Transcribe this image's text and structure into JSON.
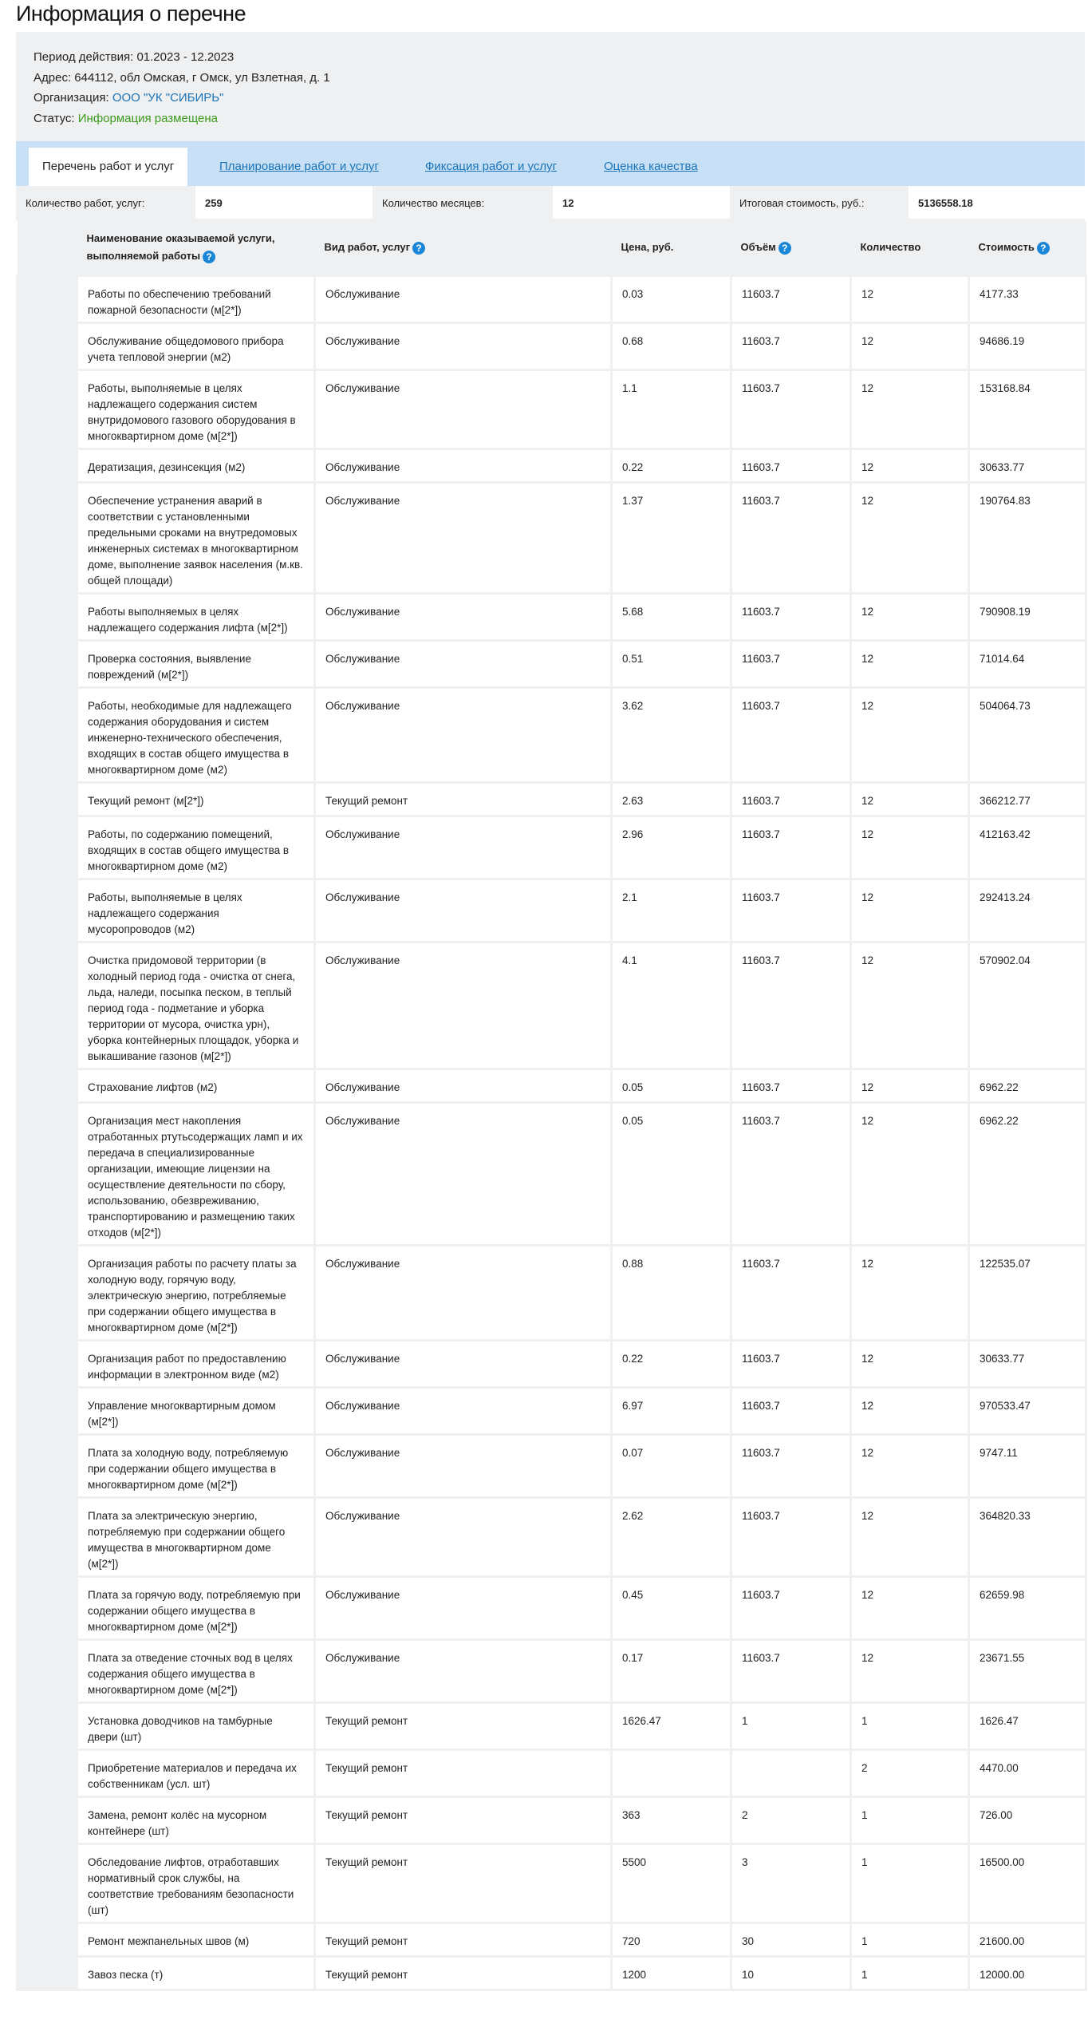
{
  "page_title": "Информация о перечне",
  "info": {
    "period_label": "Период действия:",
    "period_value": "01.2023 - 12.2023",
    "address_label": "Адрес:",
    "address_value": "644112, обл Омская, г Омск, ул Взлетная, д. 1",
    "org_label": "Организация:",
    "org_value": "ООО \"УК \"СИБИРЬ\"",
    "status_label": "Статус:",
    "status_value": "Информация размещена"
  },
  "colors": {
    "link": "#1a73b8",
    "status_ok": "#3a9a1c",
    "tab_bar": "#c7e0f5",
    "help_icon": "#1a86d8"
  },
  "tabs": [
    {
      "label": "Перечень работ и услуг",
      "active": true
    },
    {
      "label": "Планирование работ и услуг",
      "active": false
    },
    {
      "label": "Фиксация работ и услуг",
      "active": false
    },
    {
      "label": "Оценка качества",
      "active": false
    }
  ],
  "summary": {
    "works_label": "Количество работ, услуг:",
    "works_value": "259",
    "months_label": "Количество месяцев:",
    "months_value": "12",
    "total_label": "Итоговая стоимость, руб.:",
    "total_value": "5136558.18"
  },
  "table": {
    "headers": {
      "name": "Наименование оказываемой услуги, выполняемой работы",
      "type": "Вид работ, услуг",
      "price": "Цена, руб.",
      "volume": "Объём",
      "quantity": "Количество",
      "cost": "Стоимость"
    },
    "help_icon": "question-circle-icon",
    "rows": [
      [
        "Работы по обеспечению требований пожарной безопасности (м[2*])",
        "Обслуживание",
        "0.03",
        "11603.7",
        "12",
        "4177.33"
      ],
      [
        "Обслуживание общедомового прибора учета тепловой энергии (м2)",
        "Обслуживание",
        "0.68",
        "11603.7",
        "12",
        "94686.19"
      ],
      [
        "Работы, выполняемые в целях надлежащего содержания систем внутридомового газового оборудования в многоквартирном доме (м[2*])",
        "Обслуживание",
        "1.1",
        "11603.7",
        "12",
        "153168.84"
      ],
      [
        "Дератизация, дезинсекция (м2)",
        "Обслуживание",
        "0.22",
        "11603.7",
        "12",
        "30633.77"
      ],
      [
        "Обеспечение устранения аварий в соответствии с установленными предельными сроками на внутредомовых инженерных системах в многоквартирном доме, выполнение заявок населения (м.кв. общей площади)",
        "Обслуживание",
        "1.37",
        "11603.7",
        "12",
        "190764.83"
      ],
      [
        "Работы выполняемых в целях надлежащего содержания лифта (м[2*])",
        "Обслуживание",
        "5.68",
        "11603.7",
        "12",
        "790908.19"
      ],
      [
        "Проверка состояния, выявление повреждений (м[2*])",
        "Обслуживание",
        "0.51",
        "11603.7",
        "12",
        "71014.64"
      ],
      [
        "Работы, необходимые для надлежащего содержания оборудования и систем инженерно-технического обеспечения, входящих в состав общего имущества в многоквартирном доме (м2)",
        "Обслуживание",
        "3.62",
        "11603.7",
        "12",
        "504064.73"
      ],
      [
        "Текущий ремонт (м[2*])",
        "Текущий ремонт",
        "2.63",
        "11603.7",
        "12",
        "366212.77"
      ],
      [
        "Работы, по содержанию помещений, входящих в состав общего имущества в многоквартирном доме (м2)",
        "Обслуживание",
        "2.96",
        "11603.7",
        "12",
        "412163.42"
      ],
      [
        "Работы, выполняемые в целях надлежащего содержания мусоропроводов (м2)",
        "Обслуживание",
        "2.1",
        "11603.7",
        "12",
        "292413.24"
      ],
      [
        "Очистка придомовой территории (в холодный период года - очистка от снега, льда, наледи, посыпка песком, в теплый период года - подметание и уборка территории от мусора, очистка урн), уборка контейнерных площадок, уборка и выкашивание газонов (м[2*])",
        "Обслуживание",
        "4.1",
        "11603.7",
        "12",
        "570902.04"
      ],
      [
        "Страхование лифтов (м2)",
        "Обслуживание",
        "0.05",
        "11603.7",
        "12",
        "6962.22"
      ],
      [
        "Организация мест накопления отработанных ртутьсодержащих ламп и их передача в специализированные организации, имеющие лицензии на осуществление деятельности по сбору, использованию, обезвреживанию, транспортированию и размещению таких отходов (м[2*])",
        "Обслуживание",
        "0.05",
        "11603.7",
        "12",
        "6962.22"
      ],
      [
        "Организация работы по расчету платы за холодную воду, горячую воду, электрическую энергию, потребляемые при содержании общего имущества в многоквартирном доме (м[2*])",
        "Обслуживание",
        "0.88",
        "11603.7",
        "12",
        "122535.07"
      ],
      [
        "Организация работ по предоставлению информации в электронном виде (м2)",
        "Обслуживание",
        "0.22",
        "11603.7",
        "12",
        "30633.77"
      ],
      [
        "Управление многоквартирным домом (м[2*])",
        "Обслуживание",
        "6.97",
        "11603.7",
        "12",
        "970533.47"
      ],
      [
        "Плата за холодную воду, потребляемую при содержании общего имущества в многоквартирном доме (м[2*])",
        "Обслуживание",
        "0.07",
        "11603.7",
        "12",
        "9747.11"
      ],
      [
        "Плата за электрическую энергию, потребляемую при содержании общего имущества в многоквартирном доме (м[2*])",
        "Обслуживание",
        "2.62",
        "11603.7",
        "12",
        "364820.33"
      ],
      [
        "Плата за горячую воду, потребляемую при содержании общего имущества в многоквартирном доме (м[2*])",
        "Обслуживание",
        "0.45",
        "11603.7",
        "12",
        "62659.98"
      ],
      [
        "Плата за отведение сточных вод в целях содержания общего имущества в многоквартирном доме (м[2*])",
        "Обслуживание",
        "0.17",
        "11603.7",
        "12",
        "23671.55"
      ],
      [
        "Установка доводчиков на тамбурные двери (шт)",
        "Текущий ремонт",
        "1626.47",
        "1",
        "1",
        "1626.47"
      ],
      [
        "Приобретение материалов и передача их собственникам (усл. шт)",
        "Текущий ремонт",
        "",
        "",
        "2",
        "4470.00"
      ],
      [
        "Замена, ремонт колёс на мусорном контейнере (шт)",
        "Текущий ремонт",
        "363",
        "2",
        "1",
        "726.00"
      ],
      [
        "Обследование лифтов, отработавших нормативный срок службы, на соответствие требованиям безопасности (шт)",
        "Текущий ремонт",
        "5500",
        "3",
        "1",
        "16500.00"
      ],
      [
        "Ремонт межпанельных швов (м)",
        "Текущий ремонт",
        "720",
        "30",
        "1",
        "21600.00"
      ],
      [
        "Завоз песка (т)",
        "Текущий ремонт",
        "1200",
        "10",
        "1",
        "12000.00"
      ]
    ]
  }
}
